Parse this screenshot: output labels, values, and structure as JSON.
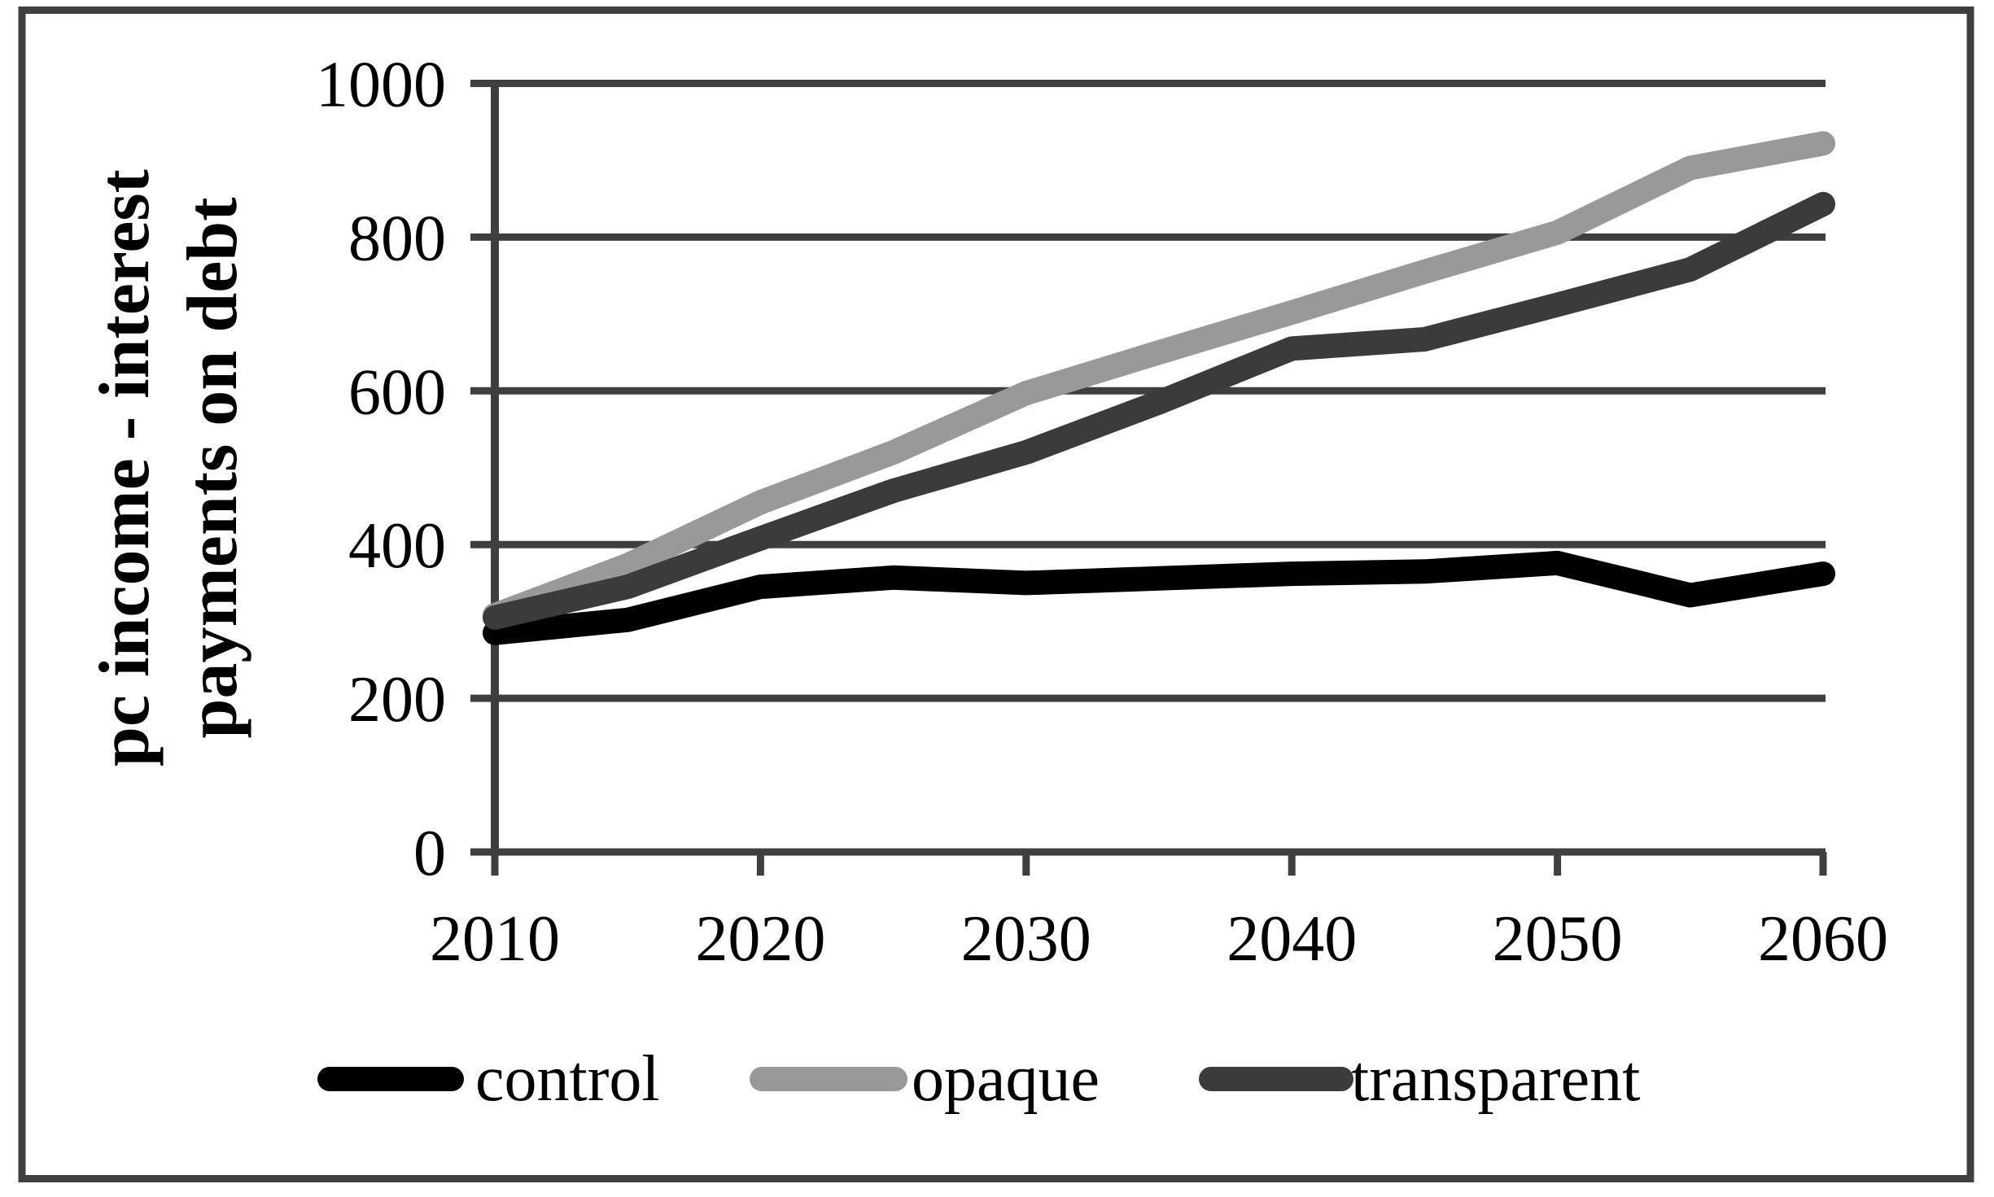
{
  "chart_data": {
    "type": "line",
    "title": "",
    "ylabel": "pc income - interest payments on debt",
    "ylabel_lines": [
      "pc income - interest",
      "payments on debt"
    ],
    "xlabel": "",
    "ylim": [
      0,
      1000
    ],
    "ytick_interval": 200,
    "yticks": [
      0,
      200,
      400,
      600,
      800,
      1000
    ],
    "xticks": [
      2010,
      2020,
      2030,
      2040,
      2050,
      2060
    ],
    "x": [
      2010,
      2015,
      2020,
      2025,
      2030,
      2035,
      2040,
      2045,
      2050,
      2055,
      2060
    ],
    "series": [
      {
        "name": "control",
        "color": "#000000",
        "values": [
          285,
          302,
          345,
          357,
          350,
          356,
          362,
          365,
          376,
          334,
          362
        ]
      },
      {
        "name": "opaque",
        "color": "#999999",
        "values": [
          308,
          373,
          455,
          520,
          597,
          650,
          702,
          755,
          806,
          890,
          922
        ]
      },
      {
        "name": "transparent",
        "color": "#3b3b3b",
        "values": [
          305,
          345,
          408,
          470,
          520,
          585,
          655,
          667,
          712,
          758,
          843
        ]
      }
    ],
    "grid": "horizontal",
    "gridline_color": "#3f3f3f",
    "frame_color": "#3f3f3f",
    "legend_position": "bottom",
    "legend": [
      "control",
      "opaque",
      "transparent"
    ]
  }
}
